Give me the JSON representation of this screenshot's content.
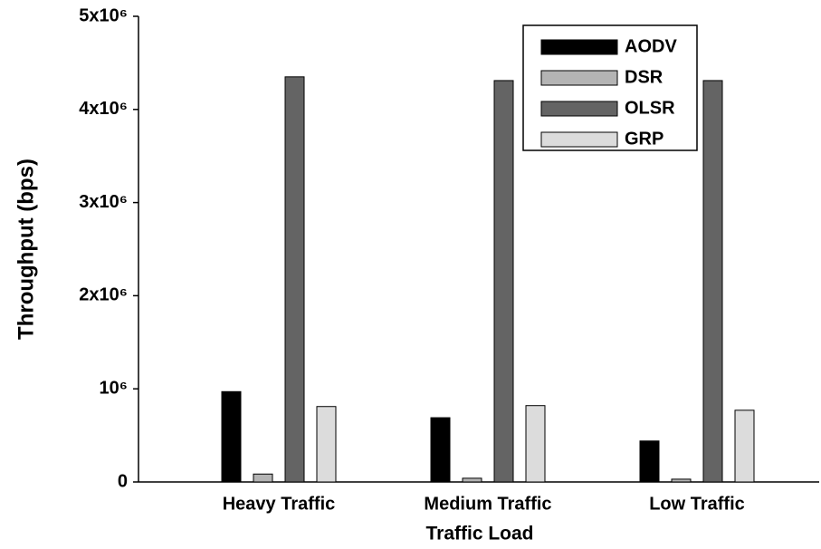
{
  "chart_data": {
    "type": "bar",
    "x_label": "Traffic Load",
    "y_label": "Throughput (bps)",
    "categories": [
      "Heavy Traffic",
      "Medium Traffic",
      "Low Traffic"
    ],
    "series": [
      {
        "name": "AODV",
        "color": "#000000",
        "values": [
          970000,
          690000,
          440000
        ]
      },
      {
        "name": "DSR",
        "color": "#b4b4b4",
        "values": [
          85000,
          40000,
          30000
        ]
      },
      {
        "name": "OLSR",
        "color": "#646464",
        "values": [
          4350000,
          4310000,
          4310000
        ]
      },
      {
        "name": "GRP",
        "color": "#dcdcdc",
        "values": [
          810000,
          820000,
          770000
        ]
      }
    ],
    "ylim": [
      0,
      5000000
    ],
    "yticks": [
      0,
      {
        "value": 1000000,
        "label": "10⁶"
      },
      {
        "value": 2000000,
        "label": "2x10⁶"
      },
      {
        "value": 3000000,
        "label": "3x10⁶"
      },
      {
        "value": 4000000,
        "label": "4x10⁶"
      },
      {
        "value": 5000000,
        "label": "5x10⁶"
      }
    ],
    "legend_position": "upper right"
  }
}
